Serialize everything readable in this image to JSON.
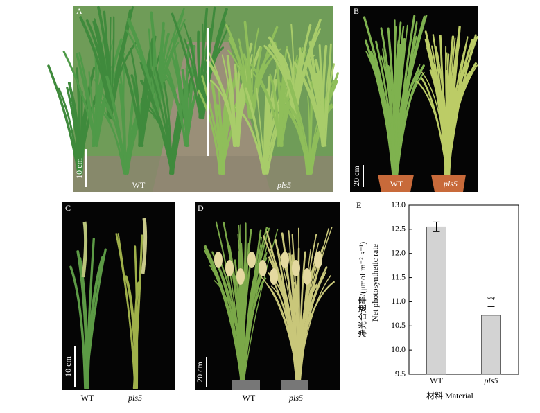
{
  "panels": [
    {
      "label": "A",
      "scale": "10 cm",
      "genotypes": [
        "WT",
        "pls5"
      ]
    },
    {
      "label": "B",
      "scale": "20 cm",
      "genotypes": [
        "WT",
        "pls5"
      ]
    },
    {
      "label": "C",
      "scale": "10 cm",
      "genotypes": [
        "WT",
        "pls5"
      ]
    },
    {
      "label": "D",
      "scale": "20 cm",
      "genotypes": [
        "WT",
        "pls5"
      ]
    }
  ],
  "chart_data": {
    "type": "bar",
    "panel_label": "E",
    "categories": [
      "WT",
      "pls5"
    ],
    "values": [
      12.55,
      10.72
    ],
    "errors": [
      0.1,
      0.18
    ],
    "color": "#d3d3d3",
    "annotations": [
      null,
      "**"
    ],
    "ylabel": [
      "净光合速率/(μmol·m⁻²·s⁻¹)",
      "Net photosynthetic rate"
    ],
    "xlabel": "材料 Material",
    "ylim": [
      9.5,
      13.0
    ],
    "yticks": [
      9.5,
      {
        "value": 10,
        "label": "10.0"
      },
      10.5,
      {
        "value": 11,
        "label": "11.0"
      },
      11.5,
      {
        "value": 12,
        "label": "12.0"
      },
      12.5,
      {
        "value": 13,
        "label": "13.0"
      }
    ],
    "grid": false
  }
}
